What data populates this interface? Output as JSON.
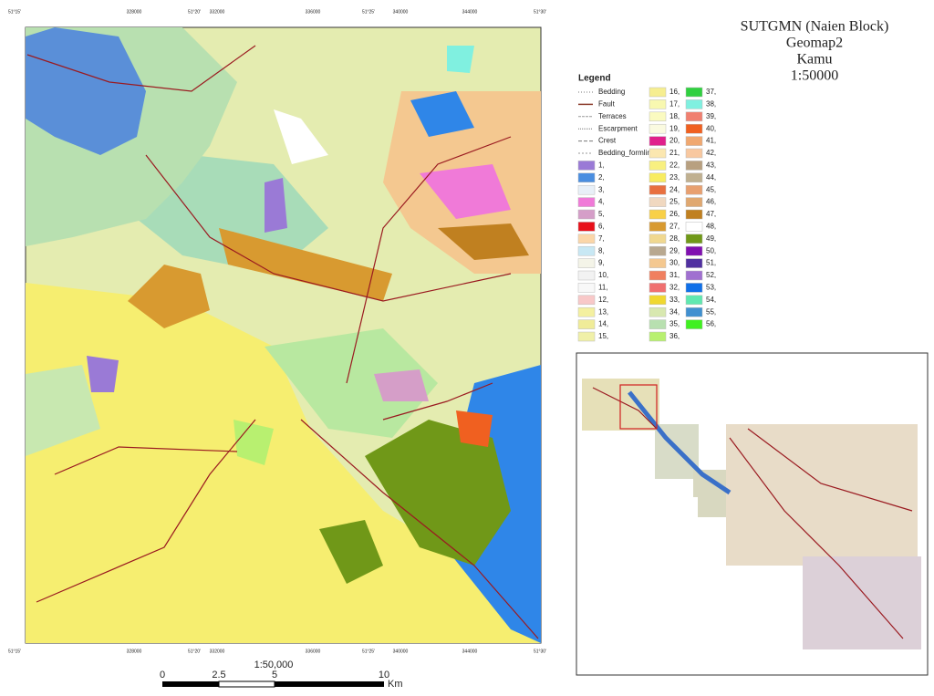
{
  "title_block": {
    "lines": [
      "SUTGMN (Naien Block)",
      "Geomap2",
      "Kamu",
      "1:50000"
    ]
  },
  "map_frame": {
    "edge_labels": [
      "51°15'",
      "328000",
      "51°20'",
      "332000",
      "336000",
      "51°25'",
      "340000",
      "344000",
      "51°30'"
    ]
  },
  "legend": {
    "title": "Legend",
    "symbols": [
      "Bedding",
      "Fault",
      "Terraces",
      "Escarpment",
      "Crest",
      "Bedding_formline"
    ],
    "units": [
      {
        "label": "1,",
        "color": "#9a7ad6"
      },
      {
        "label": "2,",
        "color": "#4a8ee0"
      },
      {
        "label": "3,",
        "color": "#e8f0f8"
      },
      {
        "label": "4,",
        "color": "#f07ad8"
      },
      {
        "label": "5,",
        "color": "#d59ec8"
      },
      {
        "label": "6,",
        "color": "#e8101a"
      },
      {
        "label": "7,",
        "color": "#fbd6a8"
      },
      {
        "label": "8,",
        "color": "#c8e8f4"
      },
      {
        "label": "9,",
        "color": "#f4f4e8"
      },
      {
        "label": "10,",
        "color": "#f2f2f2"
      },
      {
        "label": "11,",
        "color": "#f8f8f8"
      },
      {
        "label": "12,",
        "color": "#f8c8c8"
      },
      {
        "label": "13,",
        "color": "#f4f0a0"
      },
      {
        "label": "14,",
        "color": "#f0ec98"
      },
      {
        "label": "15,",
        "color": "#f0f0a8"
      },
      {
        "label": "16,",
        "color": "#f6ee90"
      },
      {
        "label": "17,",
        "color": "#f8f8b0"
      },
      {
        "label": "18,",
        "color": "#fafac0"
      },
      {
        "label": "19,",
        "color": "#fafae0"
      },
      {
        "label": "20,",
        "color": "#e0208c"
      },
      {
        "label": "21,",
        "color": "#fbe7b0"
      },
      {
        "label": "22,",
        "color": "#f8f080"
      },
      {
        "label": "23,",
        "color": "#f8ec60"
      },
      {
        "label": "24,",
        "color": "#e87040"
      },
      {
        "label": "25,",
        "color": "#f0d8c0"
      },
      {
        "label": "26,",
        "color": "#f8d048"
      },
      {
        "label": "27,",
        "color": "#d89a30"
      },
      {
        "label": "28,",
        "color": "#f0d890"
      },
      {
        "label": "29,",
        "color": "#b8a890"
      },
      {
        "label": "30,",
        "color": "#f4c890"
      },
      {
        "label": "31,",
        "color": "#f08060"
      },
      {
        "label": "32,",
        "color": "#f07070"
      },
      {
        "label": "33,",
        "color": "#f0d830"
      },
      {
        "label": "34,",
        "color": "#d8e8b0"
      },
      {
        "label": "35,",
        "color": "#b8e0b0"
      },
      {
        "label": "36,",
        "color": "#b8f070"
      },
      {
        "label": "37,",
        "color": "#30d040"
      },
      {
        "label": "38,",
        "color": "#80f0e0"
      },
      {
        "label": "39,",
        "color": "#f08070"
      },
      {
        "label": "40,",
        "color": "#f06020"
      },
      {
        "label": "41,",
        "color": "#f0a870"
      },
      {
        "label": "42,",
        "color": "#f8c8a0"
      },
      {
        "label": "43,",
        "color": "#b8a080"
      },
      {
        "label": "44,",
        "color": "#c0b090"
      },
      {
        "label": "45,",
        "color": "#e8a070"
      },
      {
        "label": "46,",
        "color": "#e0a870"
      },
      {
        "label": "47,",
        "color": "#c08020"
      },
      {
        "label": "48,",
        "color": "#ffffff"
      },
      {
        "label": "49,",
        "color": "#709818"
      },
      {
        "label": "50,",
        "color": "#8010b0"
      },
      {
        "label": "51,",
        "color": "#5030a0"
      },
      {
        "label": "52,",
        "color": "#a070d0"
      },
      {
        "label": "53,",
        "color": "#1070e8"
      },
      {
        "label": "54,",
        "color": "#60e8b0"
      },
      {
        "label": "55,",
        "color": "#4090d0"
      },
      {
        "label": "56,",
        "color": "#40f020"
      }
    ]
  },
  "scale_bar": {
    "ratio": "1:50,000",
    "ticks": [
      "0",
      "2.5",
      "5",
      "10"
    ],
    "unit": "Km"
  }
}
